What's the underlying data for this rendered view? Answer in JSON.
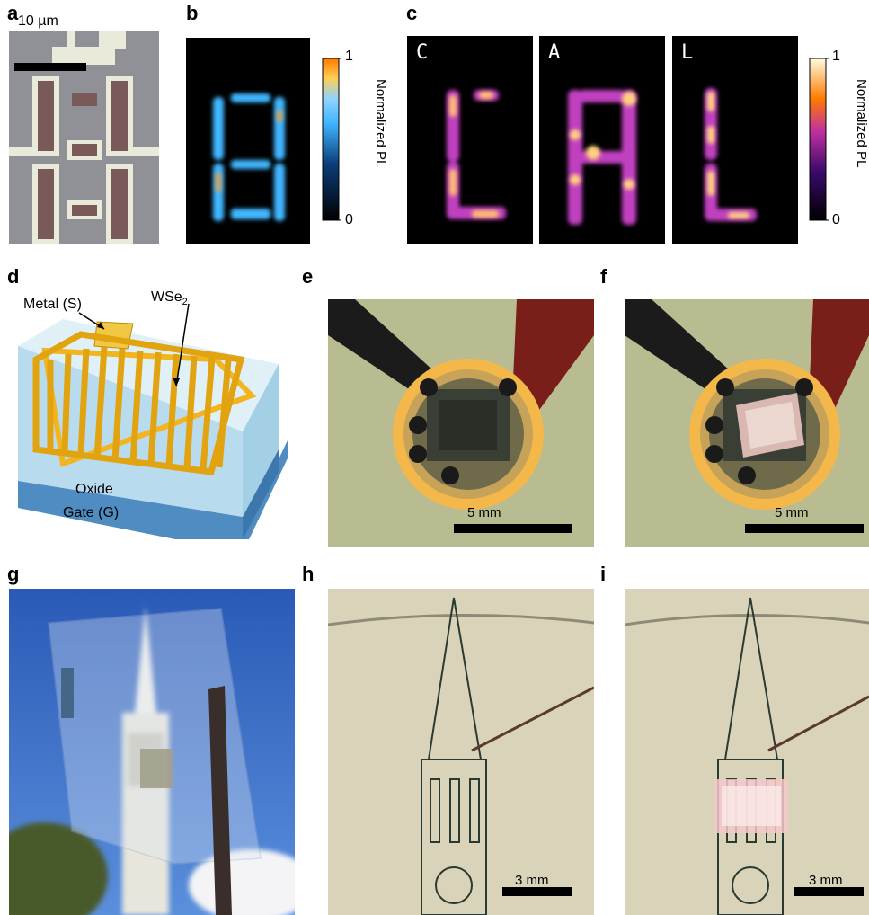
{
  "panels": {
    "a": "a",
    "b": "b",
    "c": "c",
    "d": "d",
    "e": "e",
    "f": "f",
    "g": "g",
    "h": "h",
    "i": "i"
  },
  "panel_a": {
    "scalebar": "10 µm"
  },
  "panel_b": {
    "colorbar_max": "1",
    "colorbar_min": "0",
    "colorbar_label": "Normalized PL"
  },
  "panel_c": {
    "letters": [
      "C",
      "A",
      "L"
    ],
    "colorbar_max": "1",
    "colorbar_min": "0",
    "colorbar_label": "Normalized PL"
  },
  "panel_d": {
    "metal_label": "Metal (S)",
    "wse2_label": "WSe",
    "wse2_sub": "2",
    "oxide_label": "Oxide",
    "gate_label": "Gate (G)"
  },
  "panel_e": {
    "scalebar": "5 mm"
  },
  "panel_f": {
    "scalebar": "5 mm"
  },
  "panel_h": {
    "scalebar": "3 mm"
  },
  "panel_i": {
    "scalebar": "3 mm"
  },
  "colors": {
    "pl_blue": "#3fb6ff",
    "pl_hot": "#ff7a00",
    "background_dark": "#000000",
    "device_gold": "#f2b520",
    "substrate_blue": "#5a98c9"
  }
}
